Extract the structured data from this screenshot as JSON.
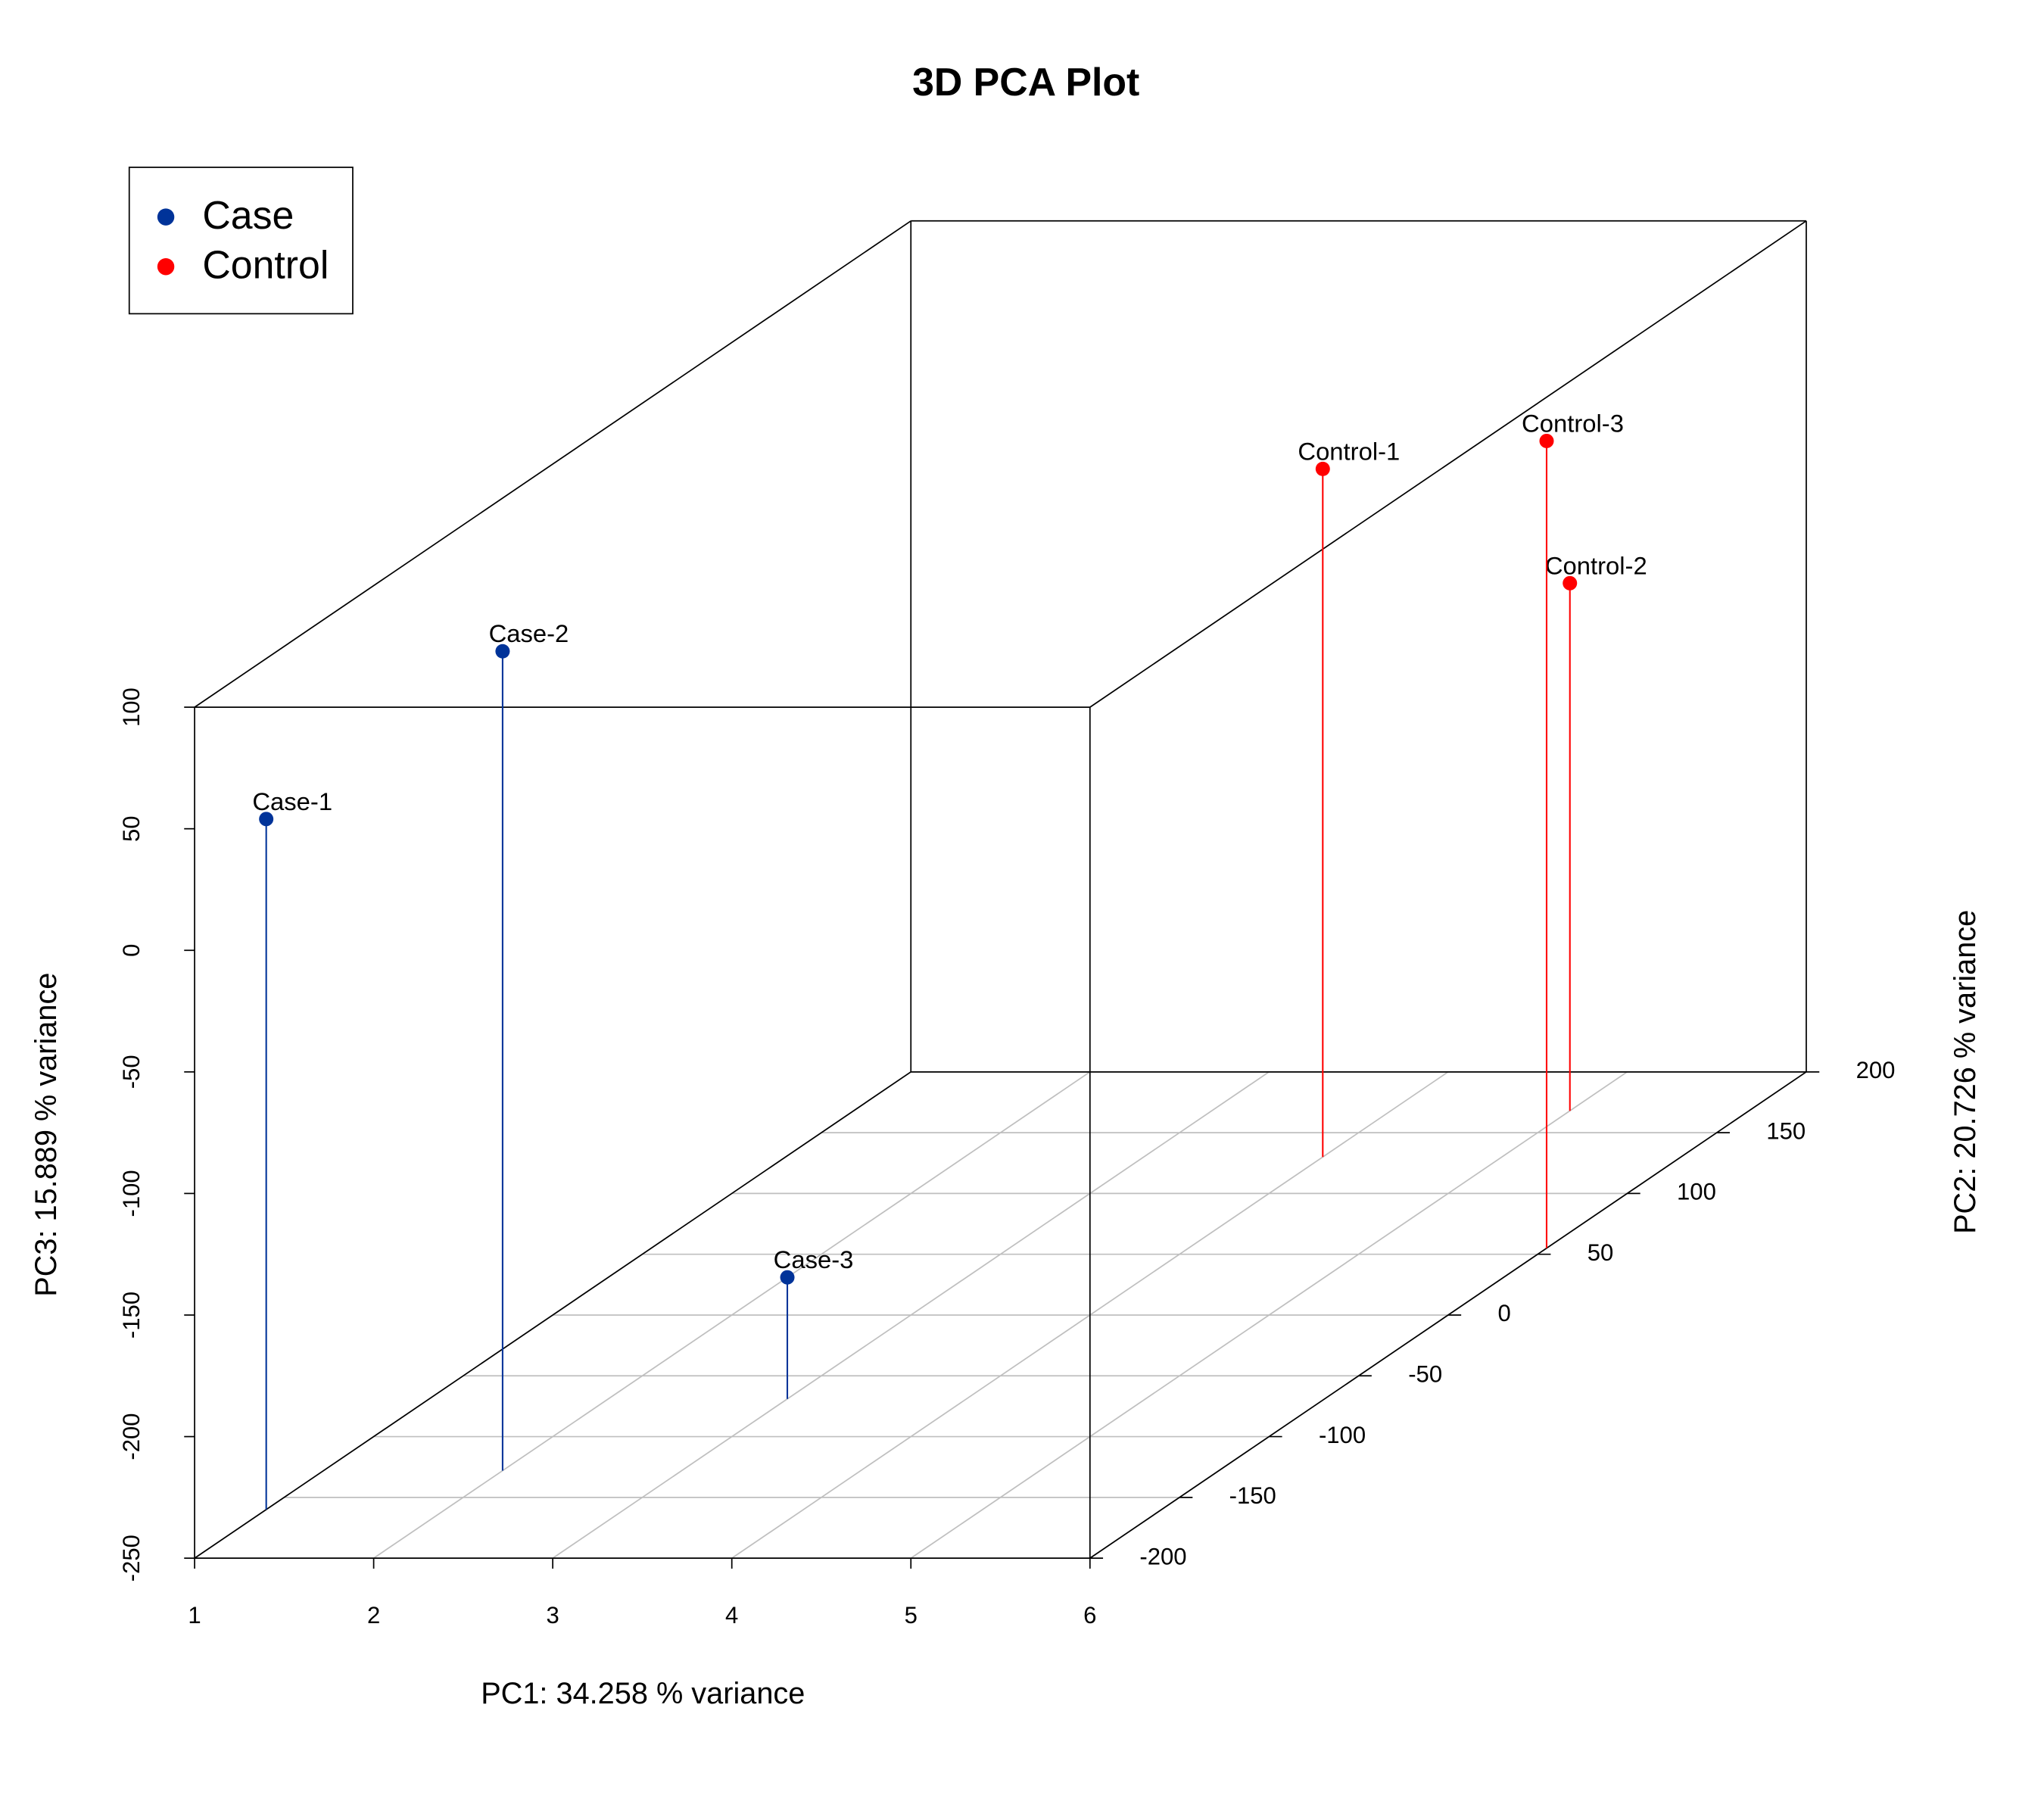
{
  "chart_data": {
    "type": "scatter3d",
    "title": "3D PCA Plot",
    "xlabel": "PC1: 34.258 % variance",
    "ylabel": "PC2: 20.726 % variance",
    "zlabel": "PC3: 15.889 % variance",
    "xlim": [
      1,
      6
    ],
    "ylim": [
      -200,
      200
    ],
    "zlim": [
      -250,
      100
    ],
    "xticks": [
      1,
      2,
      3,
      4,
      5,
      6
    ],
    "yticks": [
      -200,
      -150,
      -100,
      -50,
      0,
      50,
      100,
      150,
      200
    ],
    "zticks": [
      -250,
      -200,
      -150,
      -100,
      -50,
      0,
      50,
      100
    ],
    "grid": true,
    "legend": "top-left",
    "series": [
      {
        "name": "Case",
        "color": "#003399",
        "labels": [
          "Case-1",
          "Case-2",
          "Case-3"
        ],
        "x": [
          1,
          2,
          3
        ],
        "y": [
          -160,
          -128,
          -69
        ],
        "z": [
          34,
          87,
          -200
        ]
      },
      {
        "name": "Control",
        "color": "#ff0000",
        "labels": [
          "Control-1",
          "Control-2",
          "Control-3"
        ],
        "x": [
          4,
          5,
          6
        ],
        "y": [
          130,
          168,
          55
        ],
        "z": [
          33,
          -33,
          82
        ]
      }
    ]
  }
}
